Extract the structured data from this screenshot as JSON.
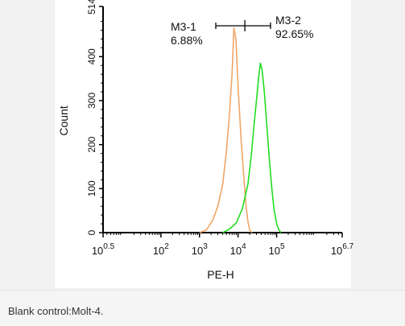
{
  "caption": "Blank control:Molt-4.",
  "chart_data": {
    "type": "line",
    "xscale": "log",
    "xlim": [
      3.1623,
      5011872
    ],
    "ylim": [
      0,
      514
    ],
    "xlabel": "PE-H",
    "ylabel": "Count",
    "x_ticks": [
      {
        "base": "10",
        "exp": "0.5",
        "value": 3.1623
      },
      {
        "base": "10",
        "exp": "2",
        "value": 100
      },
      {
        "base": "10",
        "exp": "3",
        "value": 1000
      },
      {
        "base": "10",
        "exp": "4",
        "value": 10000
      },
      {
        "base": "10",
        "exp": "5",
        "value": 100000
      },
      {
        "base": "10",
        "exp": "6.7",
        "value": 5011872
      }
    ],
    "y_ticks": [
      0,
      100,
      200,
      300,
      400,
      514
    ],
    "y_tick_labels": [
      "0",
      "100",
      "200",
      "300",
      "400",
      "514"
    ],
    "gates": [
      {
        "name": "M3-1",
        "percent": "6.88%"
      },
      {
        "name": "M3-2",
        "percent": "92.65%"
      }
    ],
    "gate_divider_x": 15000,
    "series": [
      {
        "color": "#f0a566",
        "x": [
          1000,
          1500,
          2200,
          3000,
          4000,
          5000,
          6000,
          7000,
          7800,
          8800,
          10000,
          12000,
          14000,
          16000,
          18000,
          20000,
          23000
        ],
        "y": [
          0,
          6,
          28,
          60,
          110,
          185,
          270,
          360,
          465,
          440,
          330,
          210,
          130,
          65,
          25,
          6,
          0
        ]
      },
      {
        "color": "#22dd22",
        "x": [
          4000,
          6000,
          9000,
          13000,
          18000,
          22000,
          26000,
          30000,
          34000,
          38000,
          42000,
          48000,
          55000,
          65000,
          75000,
          85000,
          100000,
          115000,
          130000
        ],
        "y": [
          0,
          8,
          22,
          55,
          110,
          175,
          245,
          300,
          350,
          385,
          370,
          320,
          250,
          165,
          100,
          55,
          20,
          6,
          0
        ]
      }
    ]
  }
}
